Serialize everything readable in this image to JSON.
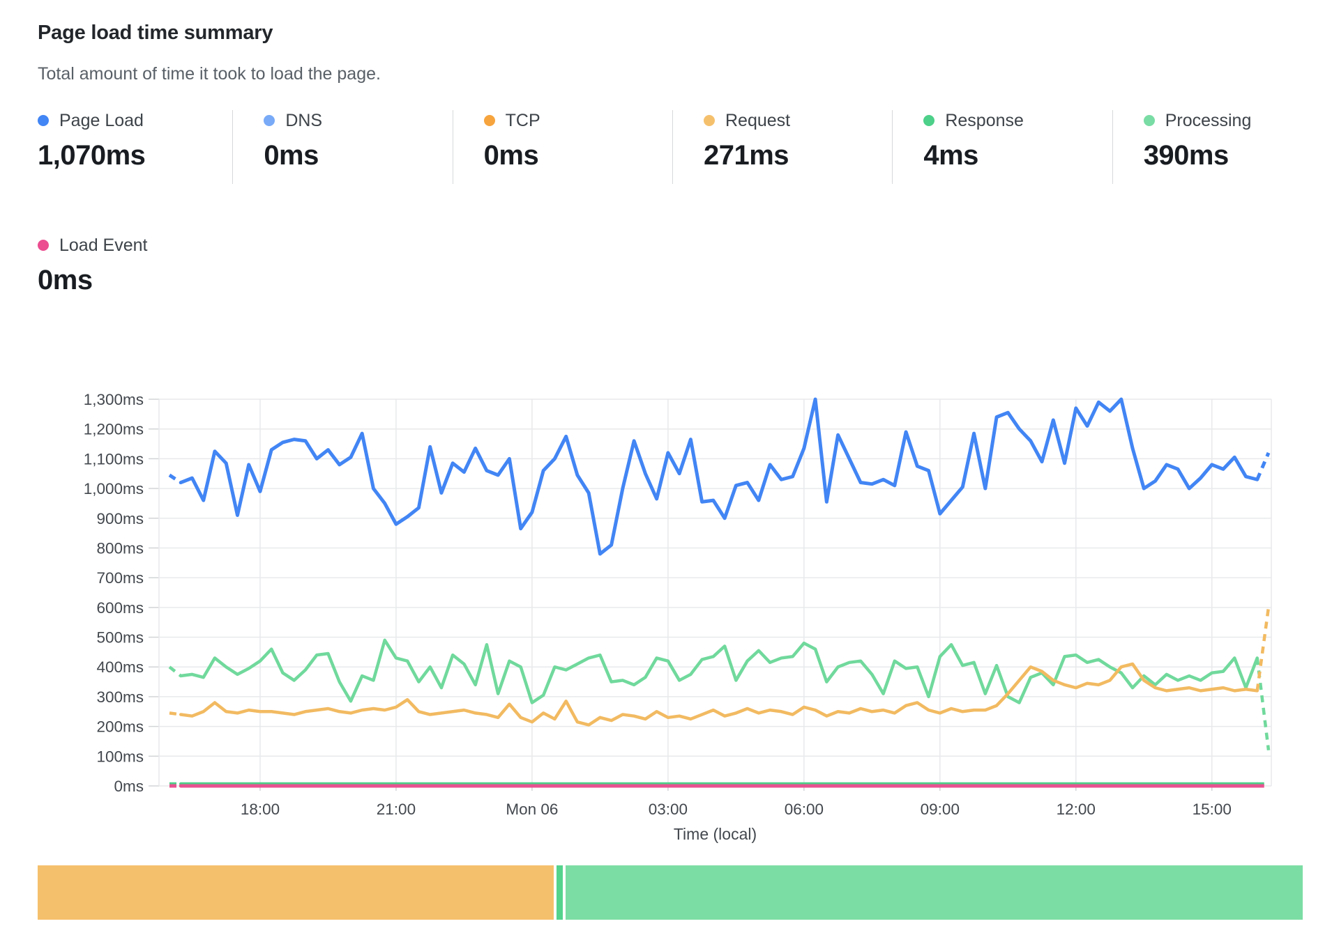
{
  "header": {
    "title": "Page load time summary",
    "subtitle": "Total amount of time it took to load the page."
  },
  "stats": {
    "items": [
      {
        "id": "page_load",
        "label": "Page Load",
        "value": "1,070ms",
        "color": "#4285f4"
      },
      {
        "id": "dns",
        "label": "DNS",
        "value": "0ms",
        "color": "#78aaf7"
      },
      {
        "id": "tcp",
        "label": "TCP",
        "value": "0ms",
        "color": "#f6a43d"
      },
      {
        "id": "request",
        "label": "Request",
        "value": "271ms",
        "color": "#f5c06c"
      },
      {
        "id": "response",
        "label": "Response",
        "value": "4ms",
        "color": "#4dd089"
      },
      {
        "id": "processing",
        "label": "Processing",
        "value": "390ms",
        "color": "#79dca4"
      }
    ],
    "load_event": {
      "id": "load_event",
      "label": "Load Event",
      "value": "0ms",
      "color": "#eb4d90"
    }
  },
  "chart_data": {
    "type": "line",
    "x_axis_label": "Time (local)",
    "y_unit": "ms",
    "y_max": 1300,
    "y_tick_step": 100,
    "y_tick_labels": [
      "0ms",
      "100ms",
      "200ms",
      "300ms",
      "400ms",
      "500ms",
      "600ms",
      "700ms",
      "800ms",
      "900ms",
      "1,000ms",
      "1,100ms",
      "1,200ms",
      "1,300ms"
    ],
    "x_ticks": [
      {
        "label": "18:00",
        "index": 8
      },
      {
        "label": "21:00",
        "index": 20
      },
      {
        "label": "Mon 06",
        "index": 32
      },
      {
        "label": "03:00",
        "index": 44
      },
      {
        "label": "06:00",
        "index": 56
      },
      {
        "label": "09:00",
        "index": 68
      },
      {
        "label": "12:00",
        "index": 80
      },
      {
        "label": "15:00",
        "index": 92
      }
    ],
    "n_points": 98,
    "grid": true,
    "legend_position": "top-stats",
    "series": [
      {
        "id": "processing",
        "name": "Processing",
        "color": "#70d99c",
        "stroke_width": 4.5,
        "values": [
          400,
          370,
          375,
          365,
          430,
          400,
          375,
          395,
          420,
          460,
          380,
          355,
          390,
          440,
          445,
          350,
          285,
          370,
          355,
          490,
          430,
          420,
          350,
          400,
          330,
          440,
          410,
          340,
          475,
          310,
          420,
          400,
          280,
          305,
          400,
          390,
          410,
          430,
          440,
          350,
          355,
          340,
          365,
          430,
          420,
          355,
          375,
          425,
          435,
          470,
          355,
          420,
          455,
          415,
          430,
          435,
          480,
          460,
          350,
          400,
          415,
          420,
          375,
          310,
          420,
          395,
          400,
          300,
          435,
          475,
          405,
          415,
          310,
          405,
          300,
          280,
          365,
          380,
          340,
          435,
          440,
          415,
          425,
          400,
          380,
          330,
          370,
          340,
          375,
          355,
          370,
          355,
          380,
          385,
          430,
          330,
          430,
          120
        ]
      },
      {
        "id": "request",
        "name": "Request",
        "color": "#f2ba61",
        "stroke_width": 4.5,
        "values": [
          245,
          240,
          235,
          250,
          280,
          250,
          245,
          255,
          250,
          250,
          245,
          240,
          250,
          255,
          260,
          250,
          245,
          255,
          260,
          255,
          265,
          290,
          250,
          240,
          245,
          250,
          255,
          245,
          240,
          230,
          275,
          230,
          215,
          245,
          225,
          285,
          215,
          205,
          230,
          220,
          240,
          235,
          225,
          250,
          230,
          235,
          225,
          240,
          255,
          235,
          245,
          260,
          245,
          255,
          250,
          240,
          265,
          255,
          235,
          250,
          245,
          260,
          250,
          255,
          245,
          270,
          280,
          255,
          245,
          260,
          250,
          255,
          255,
          270,
          310,
          355,
          400,
          385,
          355,
          340,
          330,
          345,
          340,
          355,
          400,
          410,
          355,
          330,
          320,
          325,
          330,
          320,
          325,
          330,
          320,
          325,
          320,
          600
        ]
      },
      {
        "id": "response",
        "name": "Response",
        "color": "#4dd089",
        "stroke_width": 4.5,
        "flat_value": 7
      },
      {
        "id": "load_event",
        "name": "Load Event",
        "color": "#e85290",
        "stroke_width": 5,
        "flat_value": 0
      },
      {
        "id": "page_load",
        "name": "Page Load",
        "color": "#4285f4",
        "stroke_width": 5,
        "values": [
          1045,
          1020,
          1035,
          960,
          1125,
          1085,
          910,
          1080,
          990,
          1130,
          1155,
          1165,
          1160,
          1100,
          1130,
          1080,
          1105,
          1185,
          1000,
          950,
          880,
          905,
          935,
          1140,
          985,
          1085,
          1055,
          1135,
          1060,
          1045,
          1100,
          865,
          920,
          1060,
          1100,
          1175,
          1045,
          985,
          780,
          810,
          1000,
          1160,
          1050,
          965,
          1120,
          1050,
          1165,
          955,
          960,
          900,
          1010,
          1020,
          960,
          1080,
          1030,
          1040,
          1135,
          1300,
          955,
          1180,
          1100,
          1020,
          1015,
          1030,
          1010,
          1190,
          1075,
          1060,
          915,
          960,
          1005,
          1185,
          1000,
          1240,
          1255,
          1200,
          1160,
          1090,
          1230,
          1085,
          1270,
          1210,
          1290,
          1260,
          1300,
          1135,
          1000,
          1025,
          1080,
          1065,
          1000,
          1035,
          1080,
          1065,
          1105,
          1040,
          1030,
          1120
        ]
      }
    ]
  },
  "breakdown_bar": {
    "segments": [
      {
        "id": "request",
        "color": "#f5c06c",
        "pct": 41.0
      },
      {
        "id": "response",
        "color": "#55d38d",
        "pct": 0.5
      },
      {
        "id": "processing",
        "color": "#7cdda4",
        "pct": 58.5
      }
    ]
  }
}
